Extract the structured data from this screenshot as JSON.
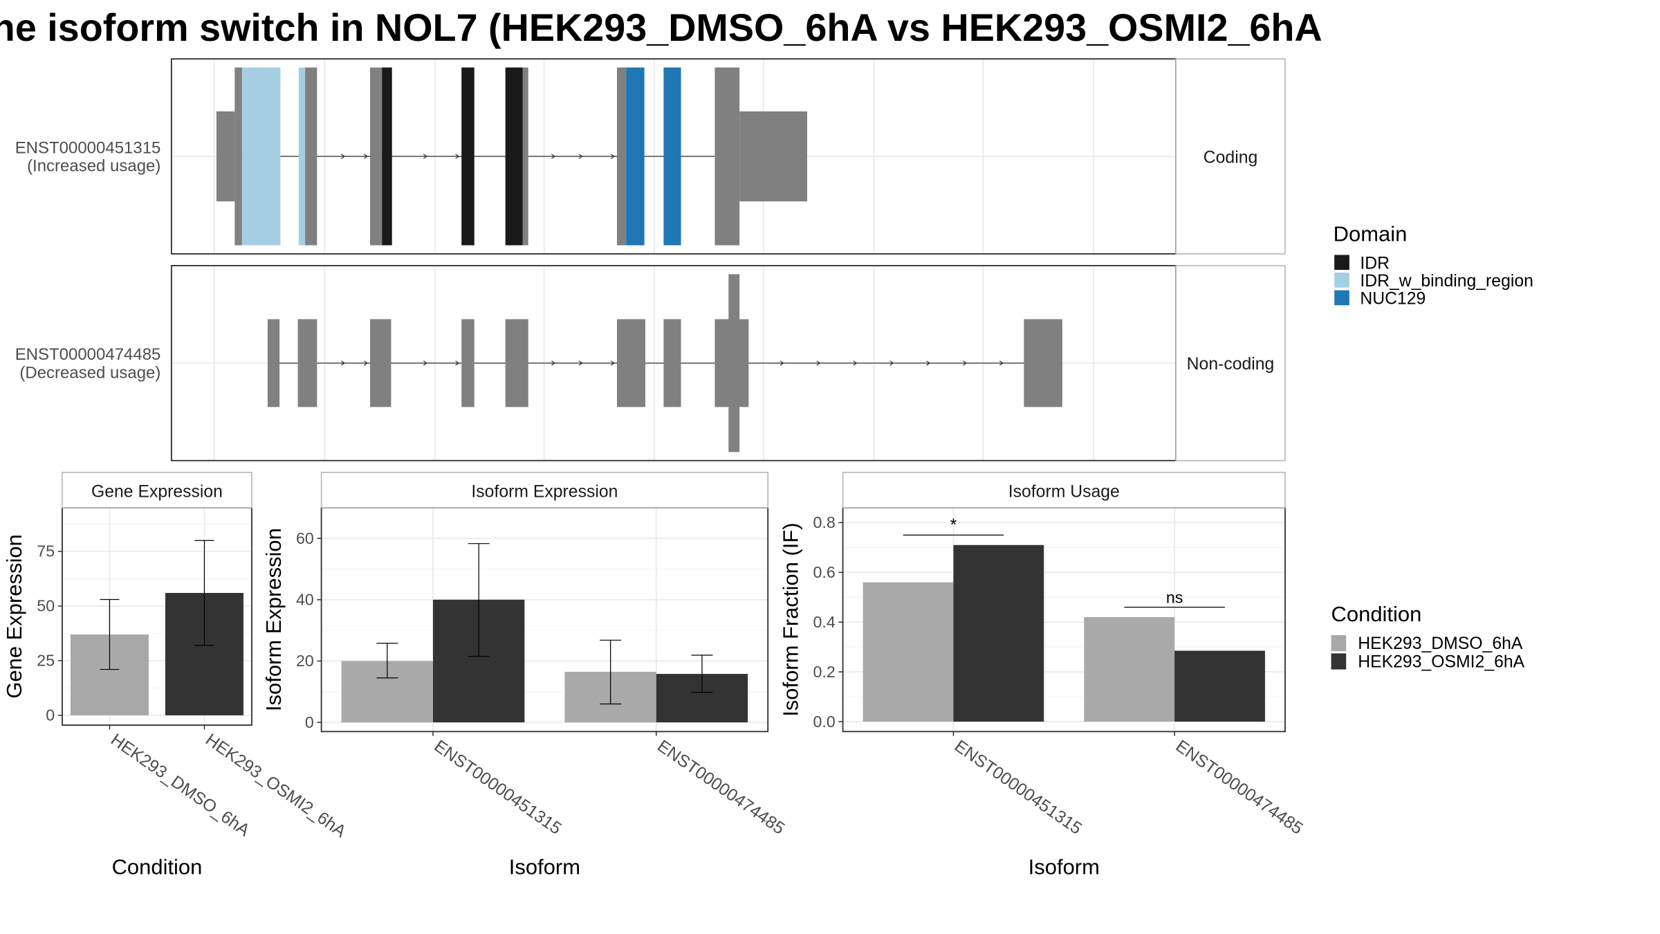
{
  "title": "he isoform switch in NOL7 (HEK293_DMSO_6hA vs HEK293_OSMI2_6hA",
  "colors": {
    "exon": "#808080",
    "IDR": "#1a1a1a",
    "IDR_w_binding_region": "#a6cee3",
    "NUC129": "#1f78b4",
    "cond1": "#a9a9a9",
    "cond2": "#333333"
  },
  "chart_data": [
    {
      "type": "gene_structure",
      "genomic_units": "normalized_0_to_1000",
      "tracks": [
        {
          "name_line1": "ENST00000451315",
          "name_line2": "(Increased usage)",
          "strip": "Coding",
          "exons": [
            {
              "start": 0,
              "end": 20,
              "kind": "utr"
            },
            {
              "start": 20,
              "end": 28,
              "kind": "cds"
            },
            {
              "start": 28,
              "end": 70,
              "kind": "cds",
              "domain": "IDR_w_binding_region"
            },
            {
              "start": 90,
              "end": 97,
              "kind": "cds",
              "domain": "IDR_w_binding_region"
            },
            {
              "start": 97,
              "end": 110,
              "kind": "cds"
            },
            {
              "start": 168,
              "end": 181,
              "kind": "cds"
            },
            {
              "start": 181,
              "end": 192,
              "kind": "cds",
              "domain": "IDR"
            },
            {
              "start": 268,
              "end": 282,
              "kind": "cds",
              "domain": "IDR"
            },
            {
              "start": 316,
              "end": 335,
              "kind": "cds",
              "domain": "IDR"
            },
            {
              "start": 335,
              "end": 341,
              "kind": "cds"
            },
            {
              "start": 438,
              "end": 448,
              "kind": "cds"
            },
            {
              "start": 448,
              "end": 468,
              "kind": "cds",
              "domain": "NUC129"
            },
            {
              "start": 489,
              "end": 508,
              "kind": "cds",
              "domain": "NUC129"
            },
            {
              "start": 545,
              "end": 572,
              "kind": "cds"
            },
            {
              "start": 572,
              "end": 646,
              "kind": "utr"
            }
          ],
          "arrows": [
            140,
            165,
            230,
            265,
            370,
            400,
            435
          ]
        },
        {
          "name_line1": "ENST00000474485",
          "name_line2": "(Decreased usage)",
          "strip": "Non-coding",
          "exons": [
            {
              "start": 56,
              "end": 69,
              "kind": "nc"
            },
            {
              "start": 89,
              "end": 110,
              "kind": "nc"
            },
            {
              "start": 168,
              "end": 191,
              "kind": "nc"
            },
            {
              "start": 268,
              "end": 282,
              "kind": "nc"
            },
            {
              "start": 316,
              "end": 341,
              "kind": "nc"
            },
            {
              "start": 438,
              "end": 469,
              "kind": "nc"
            },
            {
              "start": 489,
              "end": 508,
              "kind": "nc"
            },
            {
              "start": 545,
              "end": 582,
              "kind": "nc"
            },
            {
              "start": 560,
              "end": 572,
              "kind": "nc_tall"
            },
            {
              "start": 883,
              "end": 925,
              "kind": "nc"
            }
          ],
          "arrows": [
            140,
            165,
            230,
            265,
            370,
            400,
            435,
            620,
            660,
            700,
            740,
            780,
            820,
            860
          ]
        }
      ],
      "legend_title": "Domain",
      "legend": [
        "IDR",
        "IDR_w_binding_region",
        "NUC129"
      ]
    },
    {
      "type": "bar",
      "panel": "Gene Expression",
      "xlabel": "Condition",
      "ylabel": "Gene Expression",
      "categories": [
        "HEK293_DMSO_6hA",
        "HEK293_OSMI2_6hA"
      ],
      "values": [
        37,
        56
      ],
      "error_low": [
        21,
        32
      ],
      "error_high": [
        53,
        80
      ],
      "yticks": [
        0,
        25,
        50,
        75
      ],
      "ylim": [
        -4.5,
        95
      ]
    },
    {
      "type": "bar",
      "panel": "Isoform Expression",
      "xlabel": "Isoform",
      "ylabel": "Isoform Expression",
      "categories": [
        "ENST00000451315",
        "ENST00000474485"
      ],
      "series": [
        {
          "name": "HEK293_DMSO_6hA",
          "values": [
            20,
            16.5
          ],
          "error_low": [
            14.5,
            6
          ],
          "error_high": [
            25.8,
            26.8
          ]
        },
        {
          "name": "HEK293_OSMI2_6hA",
          "values": [
            40,
            15.8
          ],
          "error_low": [
            21.5,
            9.8
          ],
          "error_high": [
            58.3,
            21.9
          ]
        }
      ],
      "yticks": [
        0,
        20,
        40,
        60
      ],
      "ylim": [
        -3,
        70
      ]
    },
    {
      "type": "bar",
      "panel": "Isoform Usage",
      "xlabel": "Isoform",
      "ylabel": "Isoform Fraction (IF)",
      "categories": [
        "ENST00000451315",
        "ENST00000474485"
      ],
      "series": [
        {
          "name": "HEK293_DMSO_6hA",
          "values": [
            0.56,
            0.42
          ]
        },
        {
          "name": "HEK293_OSMI2_6hA",
          "values": [
            0.71,
            0.285
          ]
        }
      ],
      "significance": [
        {
          "label": "*",
          "y": 0.75
        },
        {
          "label": "ns",
          "y": 0.46
        }
      ],
      "yticks": [
        0.0,
        0.2,
        0.4,
        0.6,
        0.8
      ],
      "ytick_labels": [
        "0.0",
        "0.2",
        "0.4",
        "0.6",
        "0.8"
      ],
      "ylim": [
        -0.04,
        0.86
      ]
    }
  ],
  "condition_legend": {
    "title": "Condition",
    "items": [
      "HEK293_DMSO_6hA",
      "HEK293_OSMI2_6hA"
    ]
  }
}
